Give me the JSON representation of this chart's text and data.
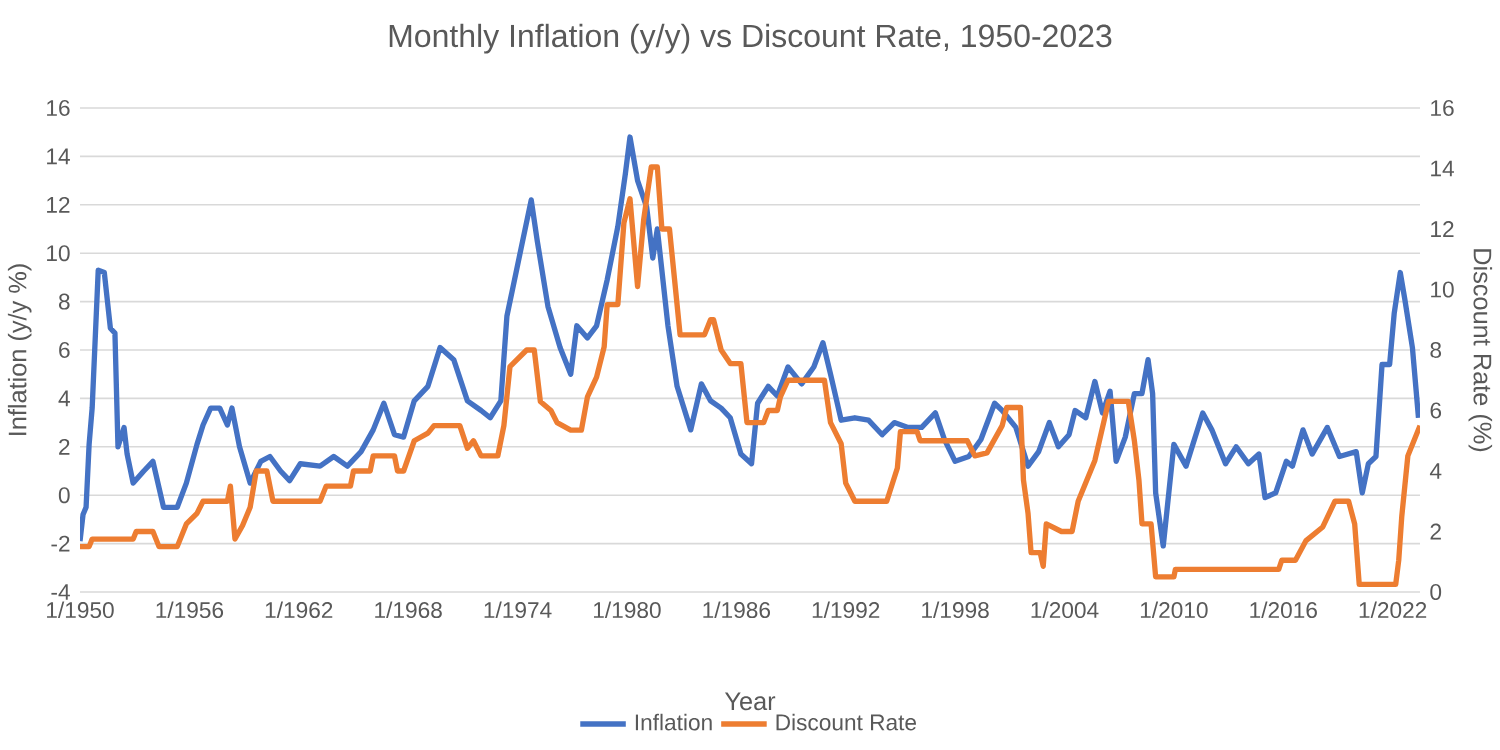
{
  "chart_data": {
    "type": "line",
    "title": "Monthly Inflation (y/y) vs Discount Rate, 1950-2023",
    "xlabel": "Year",
    "ylabel": "Inflation (y/y %)",
    "y2label": "Discount Rate (%)",
    "xlim": [
      "1950-01",
      "2023-07"
    ],
    "xticks": [
      {
        "value": "1950-01",
        "label": "1/1950"
      },
      {
        "value": "1956-01",
        "label": "1/1956"
      },
      {
        "value": "1962-01",
        "label": "1/1962"
      },
      {
        "value": "1968-01",
        "label": "1/1968"
      },
      {
        "value": "1974-01",
        "label": "1/1974"
      },
      {
        "value": "1980-01",
        "label": "1/1980"
      },
      {
        "value": "1986-01",
        "label": "1/1986"
      },
      {
        "value": "1992-01",
        "label": "1/1992"
      },
      {
        "value": "1998-01",
        "label": "1/1998"
      },
      {
        "value": "2004-01",
        "label": "1/2004"
      },
      {
        "value": "2010-01",
        "label": "1/2010"
      },
      {
        "value": "2016-01",
        "label": "1/2016"
      },
      {
        "value": "2022-01",
        "label": "1/2022"
      }
    ],
    "ylim": [
      -4,
      16
    ],
    "yticks": [
      -4,
      -2,
      0,
      2,
      4,
      6,
      8,
      10,
      12,
      14,
      16
    ],
    "y2lim": [
      0,
      16
    ],
    "y2ticks": [
      0,
      2,
      4,
      6,
      8,
      10,
      12,
      14,
      16
    ],
    "grid": "y",
    "legend": "bottom",
    "series": [
      {
        "name": "Inflation",
        "color": "#4472c4",
        "x": [
          "1950-01",
          "1950-03",
          "1950-05",
          "1950-07",
          "1950-09",
          "1951-01",
          "1951-05",
          "1951-09",
          "1951-12",
          "1952-02",
          "1952-06",
          "1952-08",
          "1952-12",
          "1953-07",
          "1954-01",
          "1954-08",
          "1955-05",
          "1955-11",
          "1956-06",
          "1956-10",
          "1957-03",
          "1957-09",
          "1958-02",
          "1958-05",
          "1958-10",
          "1959-05",
          "1959-12",
          "1960-06",
          "1961-01",
          "1961-07",
          "1962-02",
          "1963-03",
          "1963-12",
          "1964-09",
          "1965-06",
          "1966-02",
          "1966-09",
          "1967-04",
          "1967-10",
          "1968-05",
          "1969-02",
          "1969-10",
          "1970-07",
          "1971-04",
          "1972-01",
          "1972-07",
          "1973-02",
          "1973-06",
          "1974-03",
          "1974-10",
          "1975-02",
          "1975-09",
          "1976-05",
          "1976-12",
          "1977-04",
          "1977-11",
          "1978-05",
          "1978-12",
          "1979-07",
          "1979-12",
          "1980-03",
          "1980-08",
          "1981-02",
          "1981-06",
          "1981-09",
          "1982-04",
          "1982-10",
          "1983-07",
          "1984-02",
          "1984-08",
          "1985-03",
          "1985-09",
          "1986-04",
          "1986-11",
          "1987-03",
          "1987-10",
          "1988-04",
          "1988-11",
          "1989-08",
          "1990-04",
          "1990-10",
          "1991-03",
          "1991-10",
          "1992-07",
          "1993-04",
          "1994-01",
          "1994-09",
          "1995-06",
          "1996-03",
          "1996-12",
          "1997-06",
          "1998-01",
          "1998-10",
          "1999-06",
          "2000-03",
          "2000-08",
          "2001-05",
          "2002-01",
          "2002-08",
          "2003-03",
          "2003-09",
          "2004-04",
          "2004-08",
          "2005-03",
          "2005-09",
          "2006-02",
          "2006-07",
          "2006-11",
          "2007-05",
          "2007-11",
          "2008-04",
          "2008-08",
          "2008-11",
          "2009-01",
          "2009-06",
          "2010-01",
          "2010-09",
          "2011-08",
          "2012-02",
          "2012-11",
          "2013-06",
          "2014-02",
          "2014-09",
          "2015-01",
          "2015-08",
          "2016-03",
          "2016-07",
          "2017-02",
          "2017-08",
          "2018-06",
          "2019-02",
          "2020-01",
          "2020-05",
          "2020-09",
          "2021-02",
          "2021-06",
          "2021-11",
          "2022-02",
          "2022-06",
          "2022-09",
          "2023-02",
          "2023-06"
        ],
        "values": [
          -1.9,
          -0.8,
          -0.5,
          2.1,
          3.6,
          9.3,
          9.2,
          6.9,
          6.7,
          2.0,
          2.8,
          1.7,
          0.5,
          1.0,
          1.4,
          -0.5,
          -0.5,
          0.5,
          2.1,
          2.9,
          3.6,
          3.6,
          2.9,
          3.6,
          2.0,
          0.5,
          1.4,
          1.6,
          1.0,
          0.6,
          1.3,
          1.2,
          1.6,
          1.2,
          1.8,
          2.7,
          3.8,
          2.5,
          2.4,
          3.9,
          4.5,
          6.1,
          5.6,
          3.9,
          3.5,
          3.2,
          3.9,
          7.4,
          10.1,
          12.2,
          10.5,
          7.8,
          6.1,
          5.0,
          7.0,
          6.5,
          7.0,
          8.9,
          11.1,
          13.3,
          14.8,
          13.0,
          11.9,
          9.8,
          11.0,
          7.0,
          4.5,
          2.7,
          4.6,
          3.9,
          3.6,
          3.2,
          1.7,
          1.3,
          3.8,
          4.5,
          4.1,
          5.3,
          4.6,
          5.3,
          6.3,
          5.0,
          3.1,
          3.2,
          3.1,
          2.5,
          3.0,
          2.8,
          2.8,
          3.4,
          2.3,
          1.4,
          1.6,
          2.3,
          3.8,
          3.5,
          2.8,
          1.2,
          1.8,
          3.0,
          2.0,
          2.5,
          3.5,
          3.2,
          4.7,
          3.4,
          4.3,
          1.4,
          2.4,
          4.2,
          4.2,
          5.6,
          4.2,
          0.1,
          -2.1,
          2.1,
          1.2,
          3.4,
          2.7,
          1.3,
          2.0,
          1.3,
          1.7,
          -0.1,
          0.1,
          1.4,
          1.2,
          2.7,
          1.7,
          2.8,
          1.6,
          1.8,
          0.1,
          1.3,
          1.6,
          5.4,
          5.4,
          7.5,
          9.2,
          8.1,
          6.1,
          3.2
        ]
      },
      {
        "name": "Discount Rate",
        "color": "#ed7d31",
        "axis": "y2",
        "x": [
          "1950-01",
          "1950-07",
          "1950-09",
          "1952-12",
          "1953-02",
          "1954-01",
          "1954-05",
          "1955-05",
          "1955-11",
          "1956-06",
          "1956-10",
          "1958-02",
          "1958-04",
          "1958-07",
          "1958-12",
          "1959-05",
          "1959-09",
          "1960-04",
          "1960-08",
          "1963-03",
          "1963-07",
          "1964-11",
          "1965-01",
          "1965-12",
          "1966-02",
          "1967-04",
          "1967-06",
          "1967-10",
          "1968-05",
          "1969-02",
          "1969-06",
          "1970-11",
          "1971-04",
          "1971-08",
          "1972-01",
          "1972-12",
          "1973-04",
          "1973-08",
          "1974-07",
          "1974-12",
          "1975-04",
          "1975-11",
          "1976-03",
          "1976-12",
          "1977-07",
          "1977-11",
          "1978-05",
          "1978-10",
          "1978-12",
          "1979-07",
          "1979-11",
          "1980-03",
          "1980-08",
          "1980-12",
          "1981-05",
          "1981-09",
          "1981-12",
          "1982-05",
          "1982-08",
          "1982-12",
          "1983-07",
          "1984-04",
          "1984-08",
          "1984-10",
          "1985-03",
          "1985-09",
          "1986-04",
          "1986-08",
          "1987-07",
          "1987-10",
          "1988-04",
          "1988-06",
          "1988-11",
          "1990-11",
          "1991-03",
          "1991-10",
          "1992-01",
          "1992-07",
          "1994-04",
          "1994-11",
          "1995-01",
          "1995-12",
          "1996-02",
          "1998-09",
          "1999-02",
          "1999-10",
          "2000-08",
          "2000-11",
          "2001-08",
          "2001-10",
          "2002-01",
          "2002-03",
          "2002-09",
          "2002-11",
          "2003-01",
          "2003-11",
          "2004-06",
          "2004-10",
          "2005-09",
          "2006-06",
          "2007-07",
          "2007-11",
          "2008-02",
          "2008-04",
          "2008-10",
          "2009-01",
          "2010-01",
          "2010-02",
          "2015-10",
          "2015-12",
          "2016-09",
          "2017-04",
          "2018-03",
          "2018-11",
          "2019-08",
          "2019-12",
          "2020-03",
          "2022-03",
          "2022-05",
          "2022-07",
          "2022-11",
          "2023-03",
          "2023-07"
        ],
        "values": [
          1.5,
          1.5,
          1.75,
          1.75,
          2.0,
          2.0,
          1.5,
          1.5,
          2.25,
          2.6,
          3.0,
          3.0,
          3.5,
          1.75,
          2.2,
          2.8,
          4.0,
          4.0,
          3.0,
          3.0,
          3.5,
          3.5,
          4.0,
          4.0,
          4.5,
          4.5,
          4.0,
          4.0,
          5.0,
          5.25,
          5.5,
          5.5,
          4.75,
          5.0,
          4.5,
          4.5,
          5.5,
          7.45,
          8.0,
          8.0,
          6.3,
          6.0,
          5.6,
          5.35,
          5.35,
          6.45,
          7.1,
          8.1,
          9.5,
          9.5,
          12.2,
          13.0,
          10.1,
          12.3,
          14.05,
          14.05,
          12.0,
          12.0,
          10.5,
          8.5,
          8.5,
          8.5,
          9.0,
          9.0,
          8.0,
          7.55,
          7.55,
          5.6,
          5.6,
          6.0,
          6.0,
          6.45,
          7.0,
          7.0,
          5.6,
          4.9,
          3.6,
          3.0,
          3.0,
          4.1,
          5.3,
          5.3,
          5.0,
          5.0,
          4.5,
          4.6,
          5.5,
          6.1,
          6.1,
          3.7,
          2.6,
          1.3,
          1.3,
          0.85,
          2.25,
          2.0,
          2.0,
          3.0,
          4.35,
          6.3,
          6.3,
          5.0,
          3.7,
          2.25,
          2.25,
          0.5,
          0.5,
          0.75,
          0.75,
          1.05,
          1.05,
          1.7,
          2.15,
          3.0,
          3.0,
          2.25,
          0.25,
          0.25,
          1.05,
          2.5,
          4.5,
          5.0,
          5.5
        ]
      }
    ]
  }
}
